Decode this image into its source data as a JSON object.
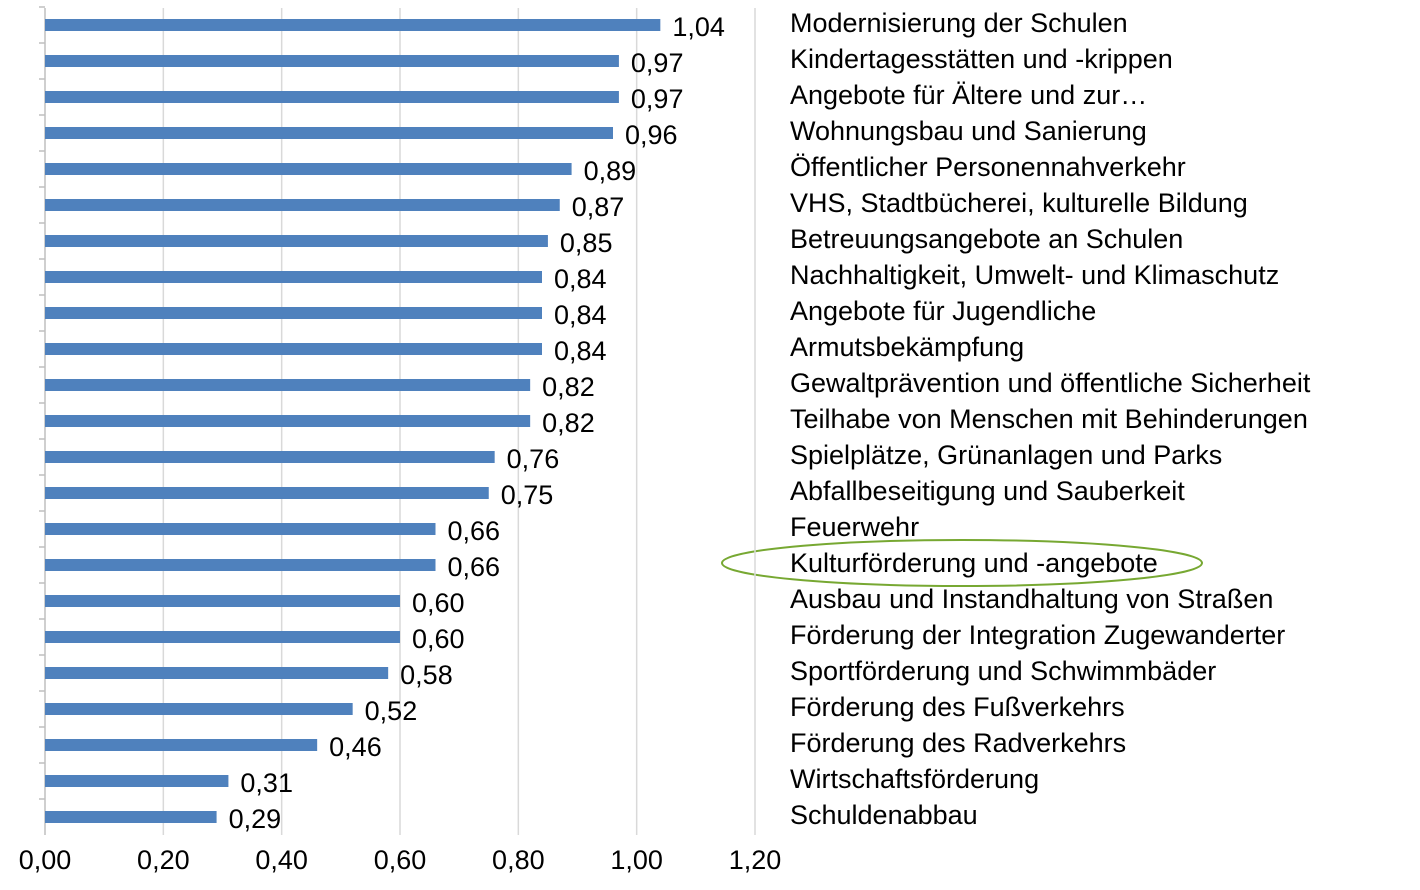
{
  "chart_data": {
    "type": "barh",
    "categories": [
      "Modernisierung der Schulen",
      "Kindertagesstätten und -krippen",
      "Angebote für Ältere und zur…",
      "Wohnungsbau und Sanierung",
      "Öffentlicher Personennahverkehr",
      "VHS, Stadtbücherei, kulturelle Bildung",
      "Betreuungsangebote an Schulen",
      "Nachhaltigkeit, Umwelt- und Klimaschutz",
      "Angebote für Jugendliche",
      "Armutsbekämpfung",
      "Gewaltprävention und öffentliche Sicherheit",
      "Teilhabe von Menschen mit Behinderungen",
      "Spielplätze, Grünanlagen und Parks",
      "Abfallbeseitigung und Sauberkeit",
      "Feuerwehr",
      "Kulturförderung und -angebote",
      "Ausbau und Instandhaltung von Straßen",
      "Förderung der Integration Zugewanderter",
      "Sportförderung und Schwimmbäder",
      "Förderung des Fußverkehrs",
      "Förderung des Radverkehrs",
      "Wirtschaftsförderung",
      "Schuldenabbau"
    ],
    "values": [
      1.04,
      0.97,
      0.97,
      0.96,
      0.89,
      0.87,
      0.85,
      0.84,
      0.84,
      0.84,
      0.82,
      0.82,
      0.76,
      0.75,
      0.66,
      0.66,
      0.6,
      0.6,
      0.58,
      0.52,
      0.46,
      0.31,
      0.29
    ],
    "value_labels": [
      "1,04",
      "0,97",
      "0,97",
      "0,96",
      "0,89",
      "0,87",
      "0,85",
      "0,84",
      "0,84",
      "0,84",
      "0,82",
      "0,82",
      "0,76",
      "0,75",
      "0,66",
      "0,66",
      "0,60",
      "0,60",
      "0,58",
      "0,52",
      "0,46",
      "0,31",
      "0,29"
    ],
    "color": "#4f81bd",
    "xlim": [
      0,
      1.2
    ],
    "xticks": [
      {
        "value": 0,
        "label": "0,00"
      },
      {
        "value": 0.2,
        "label": "0,20"
      },
      {
        "value": 0.4,
        "label": "0,40"
      },
      {
        "value": 0.6,
        "label": "0,60"
      },
      {
        "value": 0.8,
        "label": "0,80"
      },
      {
        "value": 1.0,
        "label": "1,00"
      },
      {
        "value": 1.2,
        "label": "1,20"
      }
    ],
    "grid": true
  }
}
